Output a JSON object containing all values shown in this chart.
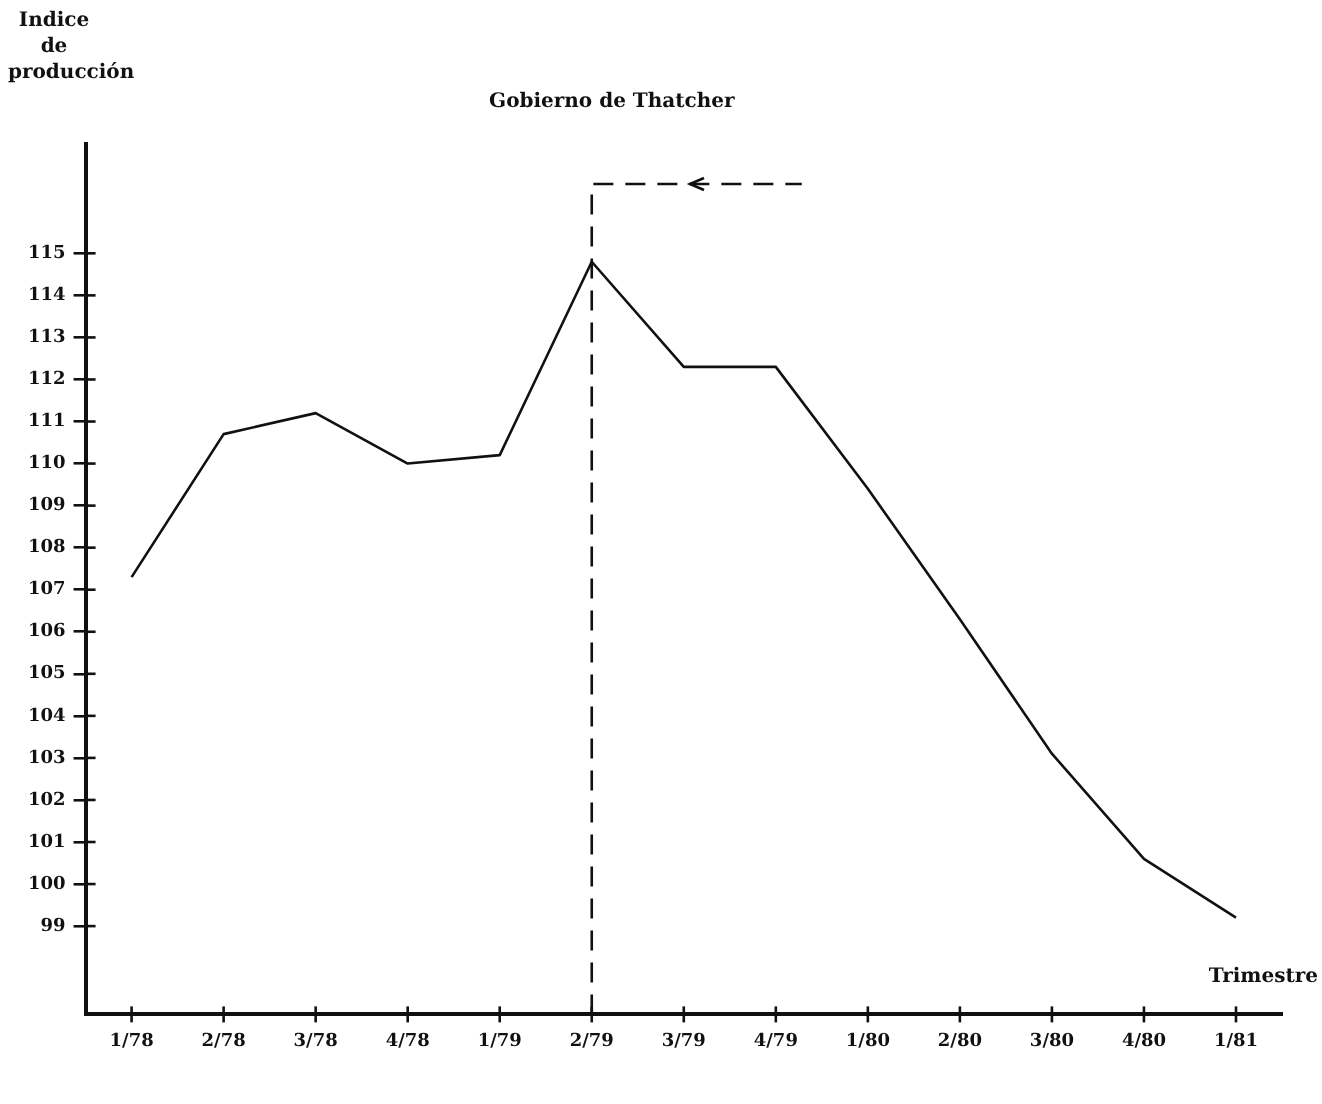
{
  "chart_data": {
    "type": "line",
    "xlabel": "Trimestre",
    "ylabel": "Indice de producción",
    "categories": [
      "1/78",
      "2/78",
      "3/78",
      "4/78",
      "1/79",
      "2/79",
      "3/79",
      "4/79",
      "1/80",
      "2/80",
      "3/80",
      "4/80",
      "1/81"
    ],
    "series": [
      {
        "color": "#111111",
        "values": [
          107.3,
          110.7,
          111.2,
          110.0,
          110.2,
          114.8,
          112.3,
          112.3,
          109.4,
          106.3,
          103.1,
          100.6,
          99.2
        ]
      }
    ],
    "ylim": [
      96.9,
      117.6
    ],
    "yticks": [
      99,
      100,
      101,
      102,
      103,
      104,
      105,
      106,
      107,
      108,
      109,
      110,
      111,
      112,
      113,
      114,
      115
    ],
    "ref_lines": [
      {
        "axis": "x",
        "value": "2/79",
        "label": "Gobierno de Thatcher",
        "color": "#111111",
        "line_style": "dashed"
      }
    ],
    "grid": false,
    "legend": false,
    "marker": "none",
    "line_style": "solid"
  }
}
